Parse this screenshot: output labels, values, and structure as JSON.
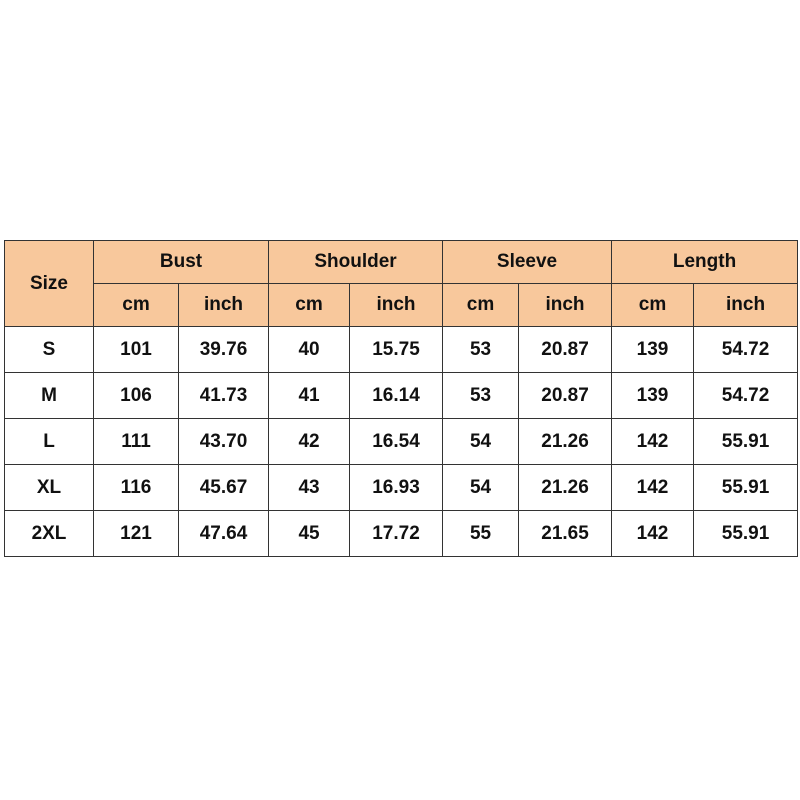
{
  "table": {
    "size_header": "Size",
    "groups": [
      "Bust",
      "Shoulder",
      "Sleeve",
      "Length"
    ],
    "units": [
      "cm",
      "inch",
      "cm",
      "inch",
      "cm",
      "inch",
      "cm",
      "inch"
    ],
    "rows": [
      [
        "S",
        "101",
        "39.76",
        "40",
        "15.75",
        "53",
        "20.87",
        "139",
        "54.72"
      ],
      [
        "M",
        "106",
        "41.73",
        "41",
        "16.14",
        "53",
        "20.87",
        "139",
        "54.72"
      ],
      [
        "L",
        "111",
        "43.70",
        "42",
        "16.54",
        "54",
        "21.26",
        "142",
        "55.91"
      ],
      [
        "XL",
        "116",
        "45.67",
        "43",
        "16.93",
        "54",
        "21.26",
        "142",
        "55.91"
      ],
      [
        "2XL",
        "121",
        "47.64",
        "45",
        "17.72",
        "55",
        "21.65",
        "142",
        "55.91"
      ]
    ]
  }
}
